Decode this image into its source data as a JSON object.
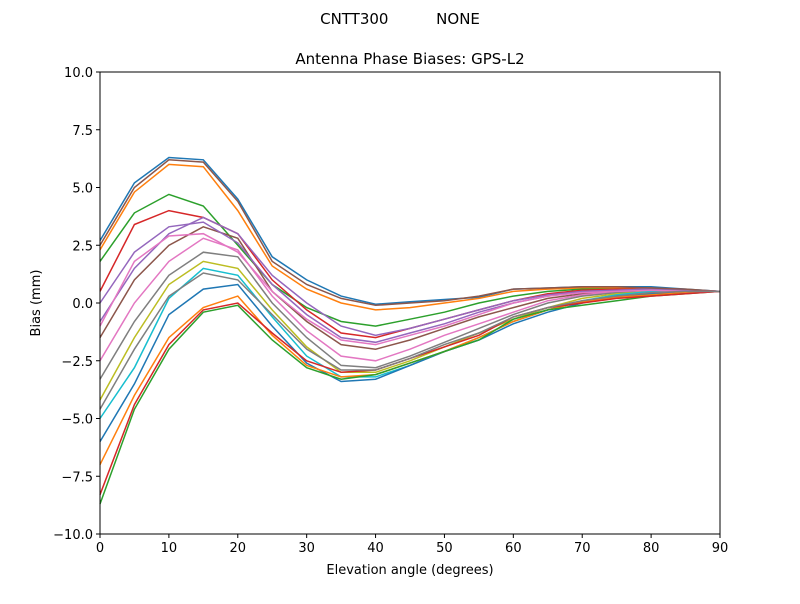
{
  "chart_data": {
    "type": "line",
    "suptitle": "CNTT300          NONE",
    "title": "Antenna Phase Biases: GPS-L2",
    "xlabel": "Elevation angle (degrees)",
    "ylabel": "Bias (mm)",
    "xlim": [
      0,
      90
    ],
    "ylim": [
      -10,
      10
    ],
    "xticks": [
      0,
      10,
      20,
      30,
      40,
      50,
      60,
      70,
      80,
      90
    ],
    "xtick_labels": [
      "0",
      "10",
      "20",
      "30",
      "40",
      "50",
      "60",
      "70",
      "80",
      "90"
    ],
    "yticks": [
      -10,
      -7.5,
      -5,
      -2.5,
      0,
      2.5,
      5,
      7.5,
      10
    ],
    "ytick_labels": [
      "−10.0",
      "−7.5",
      "−5.0",
      "−2.5",
      "0.0",
      "2.5",
      "5.0",
      "7.5",
      "10.0"
    ],
    "grid": false,
    "x": [
      0,
      5,
      10,
      15,
      20,
      25,
      30,
      35,
      40,
      45,
      50,
      55,
      60,
      65,
      70,
      75,
      80,
      85,
      90
    ],
    "colors": [
      "#1f77b4",
      "#ff7f0e",
      "#2ca02c",
      "#d62728",
      "#9467bd",
      "#8c564b",
      "#e377c2",
      "#7f7f7f",
      "#bcbd22",
      "#17becf"
    ],
    "series": [
      {
        "values": [
          2.7,
          5.2,
          6.3,
          6.2,
          4.5,
          2.0,
          1.0,
          0.3,
          -0.05,
          0.05,
          0.15,
          0.25,
          0.6,
          0.65,
          0.7,
          0.7,
          0.7,
          0.6,
          0.5
        ]
      },
      {
        "values": [
          2.3,
          4.8,
          6.0,
          5.9,
          4.0,
          1.6,
          0.6,
          0.0,
          -0.3,
          -0.2,
          0.0,
          0.2,
          0.5,
          0.6,
          0.65,
          0.65,
          0.65,
          0.55,
          0.5
        ]
      },
      {
        "values": [
          1.8,
          3.9,
          4.7,
          4.2,
          2.5,
          0.8,
          -0.2,
          -0.8,
          -1.0,
          -0.7,
          -0.4,
          0.0,
          0.3,
          0.5,
          0.6,
          0.6,
          0.6,
          0.55,
          0.5
        ]
      },
      {
        "values": [
          0.5,
          3.4,
          4.0,
          3.7,
          3.0,
          1.0,
          -0.3,
          -1.3,
          -1.5,
          -1.1,
          -0.7,
          -0.3,
          0.1,
          0.4,
          0.55,
          0.6,
          0.6,
          0.55,
          0.5
        ]
      },
      {
        "values": [
          -0.8,
          1.5,
          3.0,
          3.7,
          3.0,
          1.2,
          0.0,
          -1.0,
          -1.4,
          -1.1,
          -0.7,
          -0.3,
          0.1,
          0.35,
          0.5,
          0.55,
          0.6,
          0.55,
          0.5
        ]
      },
      {
        "values": [
          -1.5,
          1.0,
          2.5,
          3.3,
          2.8,
          0.5,
          -0.8,
          -1.8,
          -2.0,
          -1.6,
          -1.1,
          -0.6,
          -0.2,
          0.2,
          0.4,
          0.5,
          0.55,
          0.55,
          0.5
        ]
      },
      {
        "values": [
          -2.5,
          0.0,
          1.8,
          2.8,
          2.3,
          0.3,
          -1.2,
          -2.3,
          -2.5,
          -2.0,
          -1.4,
          -0.9,
          -0.4,
          0.1,
          0.35,
          0.5,
          0.55,
          0.55,
          0.5
        ]
      },
      {
        "values": [
          -3.3,
          -0.8,
          1.2,
          2.2,
          2.0,
          0.0,
          -1.5,
          -2.7,
          -2.8,
          -2.3,
          -1.7,
          -1.1,
          -0.5,
          0.0,
          0.3,
          0.45,
          0.5,
          0.5,
          0.5
        ]
      },
      {
        "values": [
          -4.2,
          -1.5,
          0.8,
          1.8,
          1.5,
          -0.3,
          -1.9,
          -3.0,
          -3.0,
          -2.5,
          -1.9,
          -1.3,
          -0.7,
          -0.2,
          0.2,
          0.4,
          0.5,
          0.5,
          0.5
        ]
      },
      {
        "values": [
          -5.0,
          -2.8,
          0.2,
          1.5,
          1.2,
          -0.6,
          -2.3,
          -3.2,
          -3.2,
          -2.7,
          -2.1,
          -1.5,
          -0.8,
          -0.3,
          0.1,
          0.35,
          0.5,
          0.5,
          0.5
        ]
      },
      {
        "values": [
          -6.0,
          -3.5,
          -0.5,
          0.6,
          0.8,
          -1.0,
          -2.6,
          -3.4,
          -3.3,
          -2.7,
          -2.1,
          -1.6,
          -0.9,
          -0.4,
          0.0,
          0.3,
          0.4,
          0.45,
          0.5
        ]
      },
      {
        "values": [
          -7.0,
          -4.0,
          -1.5,
          -0.2,
          0.3,
          -1.4,
          -2.7,
          -3.2,
          -3.1,
          -2.6,
          -2.1,
          -1.5,
          -0.8,
          -0.3,
          0.05,
          0.25,
          0.35,
          0.45,
          0.5
        ]
      },
      {
        "values": [
          -8.7,
          -4.6,
          -2.0,
          -0.4,
          -0.1,
          -1.6,
          -2.8,
          -3.3,
          -3.1,
          -2.6,
          -2.1,
          -1.6,
          -0.7,
          -0.3,
          -0.1,
          0.1,
          0.3,
          0.4,
          0.5
        ]
      },
      {
        "values": [
          -8.3,
          -4.4,
          -1.8,
          -0.3,
          0.0,
          -1.3,
          -2.5,
          -3.0,
          -2.9,
          -2.4,
          -1.9,
          -1.4,
          -0.6,
          -0.2,
          0.0,
          0.2,
          0.3,
          0.4,
          0.5
        ]
      },
      {
        "values": [
          0.0,
          2.2,
          3.3,
          3.5,
          2.6,
          0.8,
          -0.5,
          -1.5,
          -1.7,
          -1.3,
          -0.9,
          -0.4,
          0.0,
          0.3,
          0.5,
          0.55,
          0.6,
          0.55,
          0.5
        ]
      },
      {
        "values": [
          2.5,
          5.0,
          6.2,
          6.1,
          4.4,
          1.8,
          0.8,
          0.2,
          -0.1,
          0.0,
          0.1,
          0.3,
          0.6,
          0.65,
          0.7,
          0.7,
          0.65,
          0.6,
          0.5
        ]
      },
      {
        "values": [
          -1.0,
          1.8,
          2.9,
          3.0,
          2.2,
          0.5,
          -0.7,
          -1.6,
          -1.8,
          -1.4,
          -1.0,
          -0.5,
          0.0,
          0.3,
          0.45,
          0.5,
          0.55,
          0.5,
          0.5
        ]
      },
      {
        "values": [
          -4.6,
          -2.0,
          0.3,
          1.3,
          1.0,
          -0.5,
          -2.0,
          -2.9,
          -2.9,
          -2.4,
          -1.8,
          -1.3,
          -0.6,
          -0.2,
          0.1,
          0.3,
          0.45,
          0.5,
          0.5
        ]
      }
    ]
  }
}
